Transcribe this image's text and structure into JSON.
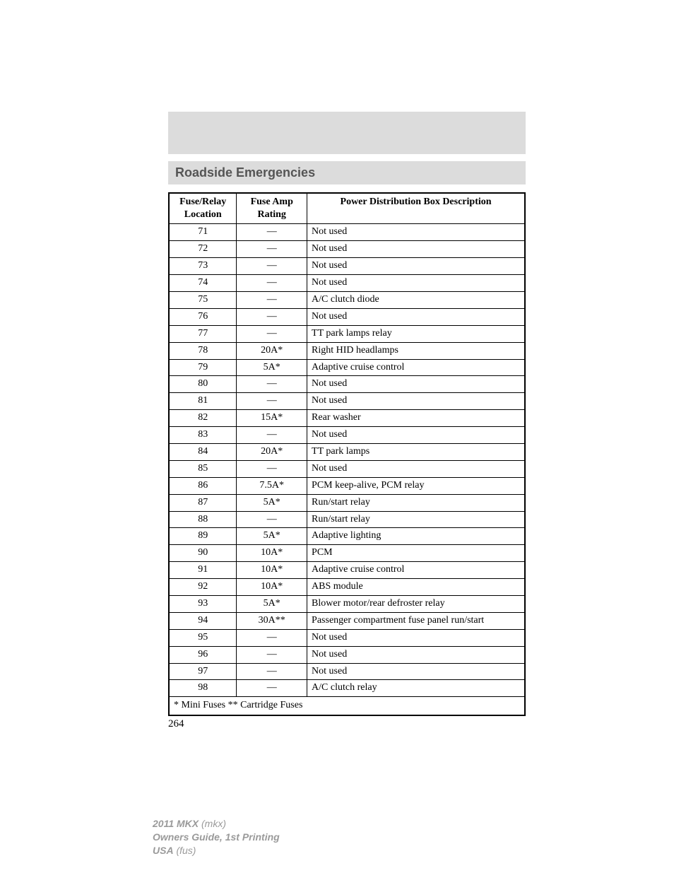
{
  "section_title": "Roadside Emergencies",
  "table": {
    "headers": {
      "location": "Fuse/Relay\nLocation",
      "rating": "Fuse Amp\nRating",
      "description": "Power Distribution Box Description"
    },
    "rows": [
      {
        "loc": "71",
        "amp": "—",
        "desc": "Not used"
      },
      {
        "loc": "72",
        "amp": "—",
        "desc": "Not used"
      },
      {
        "loc": "73",
        "amp": "—",
        "desc": "Not used"
      },
      {
        "loc": "74",
        "amp": "—",
        "desc": "Not used"
      },
      {
        "loc": "75",
        "amp": "—",
        "desc": "A/C clutch diode"
      },
      {
        "loc": "76",
        "amp": "—",
        "desc": "Not used"
      },
      {
        "loc": "77",
        "amp": "—",
        "desc": "TT park lamps relay"
      },
      {
        "loc": "78",
        "amp": "20A*",
        "desc": "Right HID headlamps"
      },
      {
        "loc": "79",
        "amp": "5A*",
        "desc": "Adaptive cruise control"
      },
      {
        "loc": "80",
        "amp": "—",
        "desc": "Not used"
      },
      {
        "loc": "81",
        "amp": "—",
        "desc": "Not used"
      },
      {
        "loc": "82",
        "amp": "15A*",
        "desc": "Rear washer"
      },
      {
        "loc": "83",
        "amp": "—",
        "desc": "Not used"
      },
      {
        "loc": "84",
        "amp": "20A*",
        "desc": "TT park lamps"
      },
      {
        "loc": "85",
        "amp": "—",
        "desc": "Not used"
      },
      {
        "loc": "86",
        "amp": "7.5A*",
        "desc": "PCM keep-alive, PCM relay"
      },
      {
        "loc": "87",
        "amp": "5A*",
        "desc": "Run/start relay"
      },
      {
        "loc": "88",
        "amp": "—",
        "desc": "Run/start relay"
      },
      {
        "loc": "89",
        "amp": "5A*",
        "desc": "Adaptive lighting"
      },
      {
        "loc": "90",
        "amp": "10A*",
        "desc": "PCM"
      },
      {
        "loc": "91",
        "amp": "10A*",
        "desc": "Adaptive cruise control"
      },
      {
        "loc": "92",
        "amp": "10A*",
        "desc": "ABS module"
      },
      {
        "loc": "93",
        "amp": "5A*",
        "desc": "Blower motor/rear defroster relay"
      },
      {
        "loc": "94",
        "amp": "30A**",
        "desc": "Passenger compartment fuse panel run/start"
      },
      {
        "loc": "95",
        "amp": "—",
        "desc": "Not used"
      },
      {
        "loc": "96",
        "amp": "—",
        "desc": "Not used"
      },
      {
        "loc": "97",
        "amp": "—",
        "desc": "Not used"
      },
      {
        "loc": "98",
        "amp": "—",
        "desc": "A/C clutch relay"
      }
    ],
    "footnote": "* Mini Fuses ** Cartridge Fuses"
  },
  "page_number": "264",
  "footer": {
    "line1_bold": "2011 MKX",
    "line1_ital": " (mkx)",
    "line2": "Owners Guide, 1st Printing",
    "line3_bold": "USA",
    "line3_ital": " (fus)"
  }
}
